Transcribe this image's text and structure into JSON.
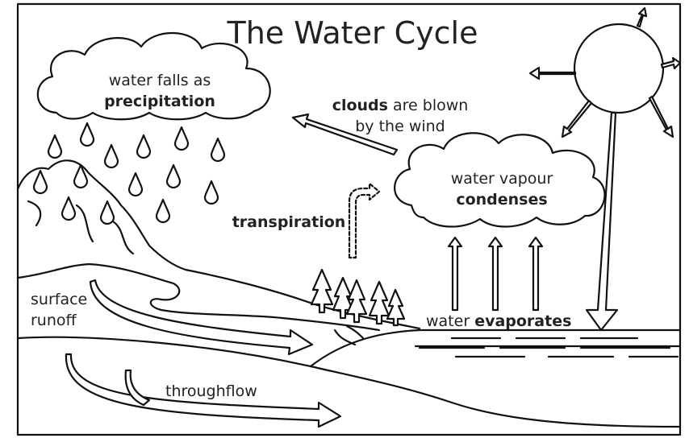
{
  "header": {
    "title": "The Water Cycle"
  },
  "labels": {
    "precipitation": {
      "line1": "water falls as",
      "line2": "precipitation"
    },
    "wind": {
      "bold": "clouds",
      "line1": "are blown",
      "line2": "by the wind"
    },
    "condensation": {
      "line1": "water vapour",
      "line2": "condenses"
    },
    "transpiration": {
      "text": "transpiration"
    },
    "runoff": {
      "line1": "surface",
      "line2": "runoff"
    },
    "evaporation": {
      "plain": "water",
      "bold": "evaporates"
    },
    "throughflow": {
      "text": "throughflow"
    }
  }
}
